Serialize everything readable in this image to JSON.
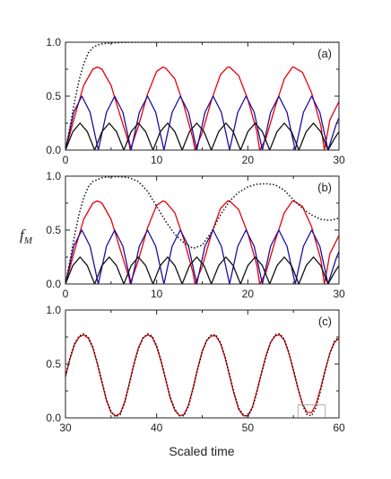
{
  "figure": {
    "ylabel_main": "f",
    "ylabel_sub": "M",
    "xlabel": "Scaled time"
  },
  "chart_data": [
    {
      "type": "line",
      "panel_label": "(a)",
      "xlim": [
        0,
        30
      ],
      "ylim": [
        0,
        1.0
      ],
      "xticks": [
        0,
        10,
        20,
        30
      ],
      "yticks": [
        0.0,
        0.5,
        1.0
      ],
      "ytick_labels": [
        "0.0",
        "0.5",
        "1.0"
      ],
      "grid": false,
      "series": [
        {
          "color": "#e8000b",
          "style": "solid",
          "x": [
            0,
            1,
            2,
            3,
            3.5,
            4,
            5,
            6,
            7,
            7.1,
            8,
            9,
            10,
            10.7,
            11,
            12,
            13,
            14,
            14.2,
            15,
            16,
            17,
            17.8,
            18,
            19,
            20,
            21,
            21.3,
            22,
            23,
            24,
            24.9,
            25,
            26,
            27,
            28,
            28.4,
            29,
            30
          ],
          "y": [
            0.0,
            0.31,
            0.6,
            0.75,
            0.77,
            0.75,
            0.6,
            0.32,
            0.05,
            0.0,
            0.22,
            0.52,
            0.73,
            0.77,
            0.76,
            0.66,
            0.41,
            0.1,
            0.0,
            0.16,
            0.46,
            0.7,
            0.77,
            0.77,
            0.69,
            0.47,
            0.17,
            0.0,
            0.11,
            0.4,
            0.66,
            0.77,
            0.77,
            0.72,
            0.53,
            0.23,
            0.0,
            0.28,
            0.45
          ]
        },
        {
          "color": "#1a0f9c",
          "style": "solid",
          "x": [
            0,
            0.9,
            1.8,
            2.7,
            3.6,
            4.5,
            5.4,
            6.3,
            7.2,
            8.1,
            9.0,
            9.9,
            10.8,
            11.7,
            12.6,
            13.5,
            14.4,
            15.3,
            16.2,
            17.1,
            18.0,
            18.9,
            19.8,
            20.7,
            21.6,
            22.5,
            23.4,
            24.3,
            25.2,
            26.1,
            27.0,
            27.9,
            28.8,
            29.7,
            30
          ],
          "y": [
            0.0,
            0.35,
            0.5,
            0.35,
            0.0,
            0.35,
            0.5,
            0.35,
            0.0,
            0.35,
            0.5,
            0.35,
            0.0,
            0.35,
            0.5,
            0.35,
            0.0,
            0.35,
            0.5,
            0.35,
            0.0,
            0.35,
            0.5,
            0.35,
            0.0,
            0.35,
            0.5,
            0.35,
            0.0,
            0.35,
            0.5,
            0.35,
            0.0,
            0.24,
            0.3
          ]
        },
        {
          "color": "#111111",
          "style": "solid",
          "x": [
            0,
            0.8,
            1.6,
            2.4,
            3.2,
            4.0,
            4.8,
            5.6,
            6.4,
            7.2,
            8.0,
            8.8,
            9.6,
            10.4,
            11.2,
            12.0,
            12.8,
            13.6,
            14.4,
            15.2,
            16.0,
            16.8,
            17.6,
            18.4,
            19.2,
            20.0,
            20.8,
            21.6,
            22.4,
            23.2,
            24.0,
            24.8,
            25.6,
            26.4,
            27.2,
            28.0,
            28.8,
            29.6,
            30
          ],
          "y": [
            0.0,
            0.17,
            0.25,
            0.17,
            0.0,
            0.17,
            0.25,
            0.17,
            0.0,
            0.17,
            0.25,
            0.17,
            0.0,
            0.17,
            0.25,
            0.17,
            0.0,
            0.17,
            0.25,
            0.17,
            0.0,
            0.17,
            0.25,
            0.17,
            0.0,
            0.17,
            0.25,
            0.17,
            0.0,
            0.17,
            0.25,
            0.17,
            0.0,
            0.17,
            0.25,
            0.17,
            0.0,
            0.12,
            0.17
          ]
        },
        {
          "color": "#111111",
          "style": "dotted",
          "x": [
            0,
            0.5,
            1,
            1.5,
            2,
            2.5,
            3,
            3.5,
            4,
            5,
            6,
            7,
            8,
            10,
            15,
            20,
            25,
            30
          ],
          "y": [
            0.0,
            0.22,
            0.45,
            0.65,
            0.8,
            0.9,
            0.95,
            0.975,
            0.985,
            0.993,
            0.997,
            0.999,
            1.0,
            1.0,
            1.0,
            1.0,
            1.0,
            1.0
          ]
        }
      ]
    },
    {
      "type": "line",
      "panel_label": "(b)",
      "xlim": [
        0,
        30
      ],
      "ylim": [
        0,
        1.0
      ],
      "xticks": [
        0,
        10,
        20,
        30
      ],
      "yticks": [
        0.0,
        0.5,
        1.0
      ],
      "ytick_labels": [
        "0.0",
        "0.5",
        "1.0"
      ],
      "grid": false,
      "series": [
        {
          "color": "#e8000b",
          "style": "solid",
          "x": [
            0,
            1,
            2,
            3,
            3.5,
            4,
            5,
            6,
            7,
            7.1,
            8,
            9,
            10,
            10.7,
            11,
            12,
            13,
            14,
            14.2,
            15,
            16,
            17,
            17.8,
            18,
            19,
            20,
            21,
            21.3,
            22,
            23,
            24,
            24.9,
            25,
            26,
            27,
            28,
            28.4,
            29,
            30
          ],
          "y": [
            0.0,
            0.31,
            0.6,
            0.75,
            0.77,
            0.75,
            0.6,
            0.32,
            0.05,
            0.0,
            0.22,
            0.52,
            0.73,
            0.77,
            0.76,
            0.66,
            0.41,
            0.1,
            0.0,
            0.16,
            0.46,
            0.7,
            0.77,
            0.77,
            0.69,
            0.47,
            0.17,
            0.0,
            0.11,
            0.4,
            0.66,
            0.77,
            0.77,
            0.72,
            0.53,
            0.23,
            0.0,
            0.28,
            0.45
          ]
        },
        {
          "color": "#1a0f9c",
          "style": "solid",
          "x": [
            0,
            0.9,
            1.8,
            2.7,
            3.6,
            4.5,
            5.4,
            6.3,
            7.2,
            8.1,
            9.0,
            9.9,
            10.8,
            11.7,
            12.6,
            13.5,
            14.4,
            15.3,
            16.2,
            17.1,
            18.0,
            18.9,
            19.8,
            20.7,
            21.6,
            22.5,
            23.4,
            24.3,
            25.2,
            26.1,
            27.0,
            27.9,
            28.8,
            29.7,
            30
          ],
          "y": [
            0.0,
            0.35,
            0.5,
            0.35,
            0.0,
            0.35,
            0.5,
            0.35,
            0.0,
            0.35,
            0.5,
            0.35,
            0.0,
            0.35,
            0.5,
            0.35,
            0.0,
            0.35,
            0.5,
            0.35,
            0.0,
            0.35,
            0.5,
            0.35,
            0.0,
            0.35,
            0.5,
            0.35,
            0.0,
            0.35,
            0.5,
            0.35,
            0.0,
            0.24,
            0.3
          ]
        },
        {
          "color": "#111111",
          "style": "solid",
          "x": [
            0,
            0.8,
            1.6,
            2.4,
            3.2,
            4.0,
            4.8,
            5.6,
            6.4,
            7.2,
            8.0,
            8.8,
            9.6,
            10.4,
            11.2,
            12.0,
            12.8,
            13.6,
            14.4,
            15.2,
            16.0,
            16.8,
            17.6,
            18.4,
            19.2,
            20.0,
            20.8,
            21.6,
            22.4,
            23.2,
            24.0,
            24.8,
            25.6,
            26.4,
            27.2,
            28.0,
            28.8,
            29.6,
            30
          ],
          "y": [
            0.0,
            0.17,
            0.25,
            0.17,
            0.0,
            0.17,
            0.25,
            0.17,
            0.0,
            0.17,
            0.25,
            0.17,
            0.0,
            0.17,
            0.25,
            0.17,
            0.0,
            0.17,
            0.25,
            0.17,
            0.0,
            0.17,
            0.25,
            0.17,
            0.0,
            0.17,
            0.25,
            0.17,
            0.0,
            0.17,
            0.25,
            0.17,
            0.0,
            0.17,
            0.25,
            0.17,
            0.0,
            0.12,
            0.17
          ]
        },
        {
          "color": "#111111",
          "style": "dotted",
          "x": [
            0,
            0.5,
            1,
            1.5,
            2,
            2.5,
            3,
            4,
            5,
            6,
            7,
            8,
            9,
            10,
            11,
            12,
            13,
            14,
            15,
            16,
            17,
            18,
            19,
            20,
            21,
            22,
            23,
            24,
            25,
            26,
            27,
            28,
            29,
            30
          ],
          "y": [
            0.0,
            0.22,
            0.45,
            0.65,
            0.8,
            0.9,
            0.95,
            0.985,
            0.995,
            0.995,
            0.985,
            0.95,
            0.86,
            0.72,
            0.58,
            0.46,
            0.38,
            0.33,
            0.36,
            0.48,
            0.64,
            0.77,
            0.85,
            0.9,
            0.925,
            0.93,
            0.92,
            0.87,
            0.78,
            0.7,
            0.64,
            0.6,
            0.59,
            0.61
          ]
        }
      ]
    },
    {
      "type": "line",
      "panel_label": "(c)",
      "xlim": [
        30,
        60
      ],
      "ylim": [
        0,
        1.0
      ],
      "xticks": [
        30,
        40,
        50,
        60
      ],
      "yticks": [
        0.0,
        0.5,
        1.0
      ],
      "ytick_labels": [
        "0.0",
        "0.5",
        "1.0"
      ],
      "grid": false,
      "series": [
        {
          "color": "#e8000b",
          "style": "solid",
          "x": [
            30,
            30.5,
            31,
            31.5,
            32,
            32.5,
            33,
            33.5,
            34,
            34.5,
            35,
            35.5,
            36,
            36.5,
            37,
            37.5,
            38,
            38.5,
            39,
            39.5,
            40,
            40.5,
            41,
            41.5,
            42,
            42.5,
            43,
            43.5,
            44,
            44.5,
            45,
            45.5,
            46,
            46.5,
            47,
            47.5,
            48,
            48.5,
            49,
            49.5,
            50,
            50.5,
            51,
            51.5,
            52,
            52.5,
            53,
            53.5,
            54,
            54.5,
            55,
            55.5,
            56,
            56.5,
            57,
            57.5,
            58,
            58.5,
            59,
            59.5,
            60
          ],
          "y": [
            0.38,
            0.55,
            0.68,
            0.75,
            0.77,
            0.74,
            0.65,
            0.5,
            0.33,
            0.16,
            0.05,
            0.02,
            0.04,
            0.15,
            0.32,
            0.5,
            0.65,
            0.74,
            0.77,
            0.75,
            0.66,
            0.52,
            0.35,
            0.18,
            0.07,
            0.02,
            0.03,
            0.12,
            0.28,
            0.46,
            0.62,
            0.72,
            0.76,
            0.76,
            0.69,
            0.56,
            0.39,
            0.22,
            0.08,
            0.02,
            0.02,
            0.1,
            0.25,
            0.42,
            0.58,
            0.7,
            0.76,
            0.77,
            0.72,
            0.6,
            0.44,
            0.27,
            0.13,
            0.05,
            0.05,
            0.13,
            0.28,
            0.45,
            0.6,
            0.7,
            0.74
          ]
        },
        {
          "color": "#111111",
          "style": "dotted",
          "x": [
            30,
            30.5,
            31,
            31.5,
            32,
            32.5,
            33,
            33.5,
            34,
            34.5,
            35,
            35.5,
            36,
            36.5,
            37,
            37.5,
            38,
            38.5,
            39,
            39.5,
            40,
            40.5,
            41,
            41.5,
            42,
            42.5,
            43,
            43.5,
            44,
            44.5,
            45,
            45.5,
            46,
            46.5,
            47,
            47.5,
            48,
            48.5,
            49,
            49.5,
            50,
            50.5,
            51,
            51.5,
            52,
            52.5,
            53,
            53.5,
            54,
            54.5,
            55,
            55.5,
            56,
            56.5,
            57,
            57.5,
            58,
            58.5,
            59,
            59.5,
            60
          ],
          "y": [
            0.39,
            0.56,
            0.69,
            0.76,
            0.78,
            0.75,
            0.66,
            0.51,
            0.34,
            0.17,
            0.06,
            0.01,
            0.03,
            0.14,
            0.31,
            0.49,
            0.64,
            0.74,
            0.78,
            0.76,
            0.67,
            0.53,
            0.36,
            0.19,
            0.08,
            0.02,
            0.02,
            0.11,
            0.27,
            0.45,
            0.61,
            0.72,
            0.77,
            0.77,
            0.7,
            0.57,
            0.4,
            0.23,
            0.09,
            0.03,
            0.01,
            0.09,
            0.24,
            0.41,
            0.57,
            0.7,
            0.77,
            0.78,
            0.73,
            0.61,
            0.45,
            0.28,
            0.12,
            0.03,
            0.02,
            0.1,
            0.26,
            0.44,
            0.6,
            0.71,
            0.75
          ]
        }
      ],
      "inset_box": {
        "x": [
          55.5,
          58.5
        ],
        "y": [
          0.0,
          0.12
        ]
      }
    }
  ]
}
